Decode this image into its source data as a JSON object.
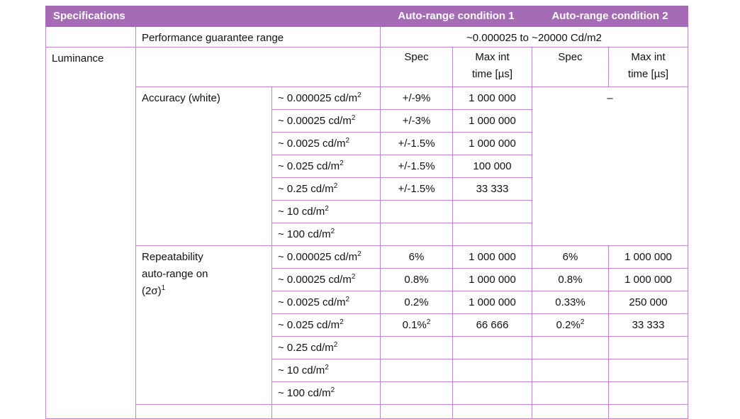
{
  "header": {
    "specifications": "Specifications",
    "cond1": "Auto-range condition 1",
    "cond2": "Auto-range condition 2"
  },
  "guarantee": {
    "label": "Performance guarantee range",
    "value": "~0.000025 to ~20000 Cd/m2"
  },
  "luminance": {
    "label": "Luminance",
    "col_spec": "Spec",
    "col_maxint_line1": "Max int",
    "col_maxint_line2": "time [µs]"
  },
  "accuracy": {
    "label": "Accuracy (white)",
    "cond2_value": "–",
    "rows": [
      {
        "range": "~ 0.000025 cd/m",
        "spec": "+/-9%",
        "maxint": "1 000 000"
      },
      {
        "range": "~ 0.00025 cd/m",
        "spec": "+/-3%",
        "maxint": "1 000 000"
      },
      {
        "range": "~ 0.0025 cd/m",
        "spec": "+/-1.5%",
        "maxint": "1 000 000"
      },
      {
        "range": "~ 0.025 cd/m",
        "spec": "+/-1.5%",
        "maxint": "100 000"
      },
      {
        "range": "~ 0.25 cd/m",
        "spec": "+/-1.5%",
        "maxint": "33 333"
      },
      {
        "range": "~ 10 cd/m",
        "spec": "",
        "maxint": ""
      },
      {
        "range": "~ 100 cd/m",
        "spec": "",
        "maxint": ""
      }
    ]
  },
  "repeatability": {
    "label_line1": "Repeatability",
    "label_line2": "auto-range on",
    "label_line3": "(2σ)",
    "label_footnote": "1",
    "rows": [
      {
        "range": "~ 0.000025 cd/m",
        "spec1": "6%",
        "max1": "1 000 000",
        "spec2": "6%",
        "max2": "1 000 000"
      },
      {
        "range": "~ 0.00025 cd/m",
        "spec1": "0.8%",
        "max1": "1 000 000",
        "spec2": "0.8%",
        "max2": "1 000 000"
      },
      {
        "range": "~ 0.0025 cd/m",
        "spec1": "0.2%",
        "max1": "1 000 000",
        "spec2": "0.33%",
        "max2": "250 000"
      },
      {
        "range": "~ 0.025 cd/m",
        "spec1": "0.1%",
        "spec1_note": "2",
        "max1": "66 666",
        "spec2": "0.2%",
        "spec2_note": "2",
        "max2": "33 333"
      },
      {
        "range": "~ 0.25 cd/m",
        "spec1": "",
        "max1": "",
        "spec2": "",
        "max2": ""
      },
      {
        "range": "~ 10 cd/m",
        "spec1": "",
        "max1": "",
        "spec2": "",
        "max2": ""
      },
      {
        "range": "~ 100 cd/m",
        "spec1": "",
        "max1": "",
        "spec2": "",
        "max2": ""
      }
    ]
  },
  "unit_exponent": "2"
}
